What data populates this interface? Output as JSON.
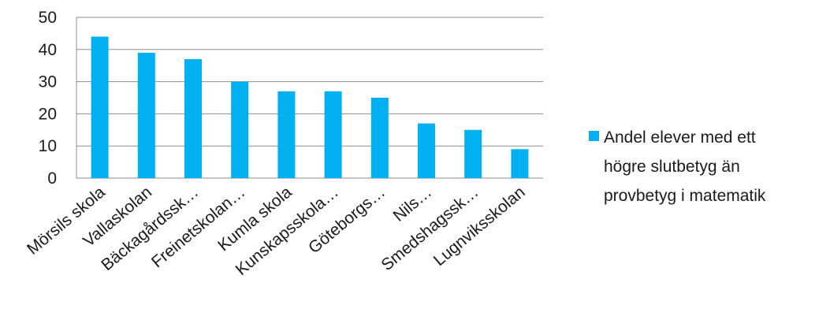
{
  "chart_data": {
    "type": "bar",
    "categories": [
      "Mörsils skola",
      "Vallaskolan",
      "Bäckagårdssk…",
      "Freinetskolan…",
      "Kumla skola",
      "Kunskapsskola…",
      "Göteborgs…",
      "Nils…",
      "Smedshagssk…",
      "Lugnviksskolan"
    ],
    "series": [
      {
        "name": "Andel elever med ett högre slutbetyg än provbetyg i matematik",
        "name_lines": [
          "Andel elever med ett",
          "högre slutbetyg än",
          "provbetyg i matematik"
        ],
        "values": [
          44,
          39,
          37,
          30,
          27,
          27,
          25,
          17,
          15,
          9
        ]
      }
    ],
    "ylim": [
      0,
      50
    ],
    "yticks": [
      "0",
      "10",
      "20",
      "30",
      "40",
      "50"
    ],
    "grid": true,
    "legend_position": "right",
    "colors": {
      "bar": "#00B0F0",
      "grid": "#8c8c8c"
    }
  }
}
